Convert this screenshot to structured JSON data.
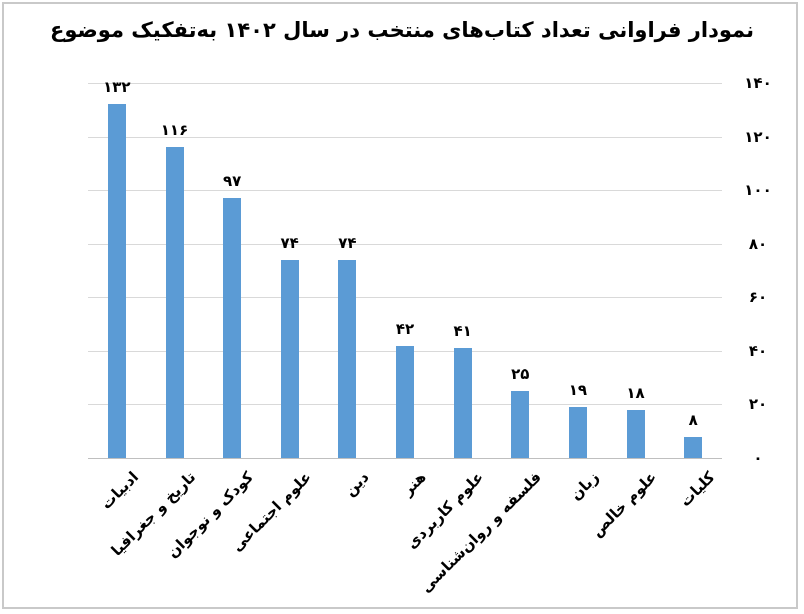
{
  "chart_data": {
    "type": "bar",
    "title": "نمودار فراوانی تعداد کتاب‌های منتخب در سال ۱۴۰۲ به‌تفکیک موضوع",
    "direction": "rtl",
    "categories": [
      "ادبیات",
      "تاریخ و جغرافیا",
      "کودک و نوجوان",
      "علوم اجتماعی",
      "دین",
      "هنر",
      "علوم کاربردی",
      "فلسفه و روان‌شناسی",
      "زبان",
      "علوم خالص",
      "کلیات"
    ],
    "values": [
      132,
      116,
      97,
      74,
      74,
      42,
      41,
      25,
      19,
      18,
      8
    ],
    "value_labels": [
      "۱۳۲",
      "۱۱۶",
      "۹۷",
      "۷۴",
      "۷۴",
      "۴۲",
      "۴۱",
      "۲۵",
      "۱۹",
      "۱۸",
      "۸"
    ],
    "xlabel": "",
    "ylabel": "",
    "ylim": [
      0,
      140
    ],
    "y_ticks": [
      0,
      20,
      40,
      60,
      80,
      100,
      120,
      140
    ],
    "y_tick_labels": [
      "۰",
      "۲۰",
      "۴۰",
      "۶۰",
      "۸۰",
      "۱۰۰",
      "۱۲۰",
      "۱۴۰"
    ],
    "y_axis_side": "right",
    "grid": true,
    "legend": "none",
    "colors": {
      "bar": "#5B9BD5",
      "gridline": "#D9D9D9",
      "axis_line": "#BFBFBF",
      "text": "#000000",
      "chart_border": "#C9C9C9",
      "background": "#FFFFFF"
    }
  }
}
